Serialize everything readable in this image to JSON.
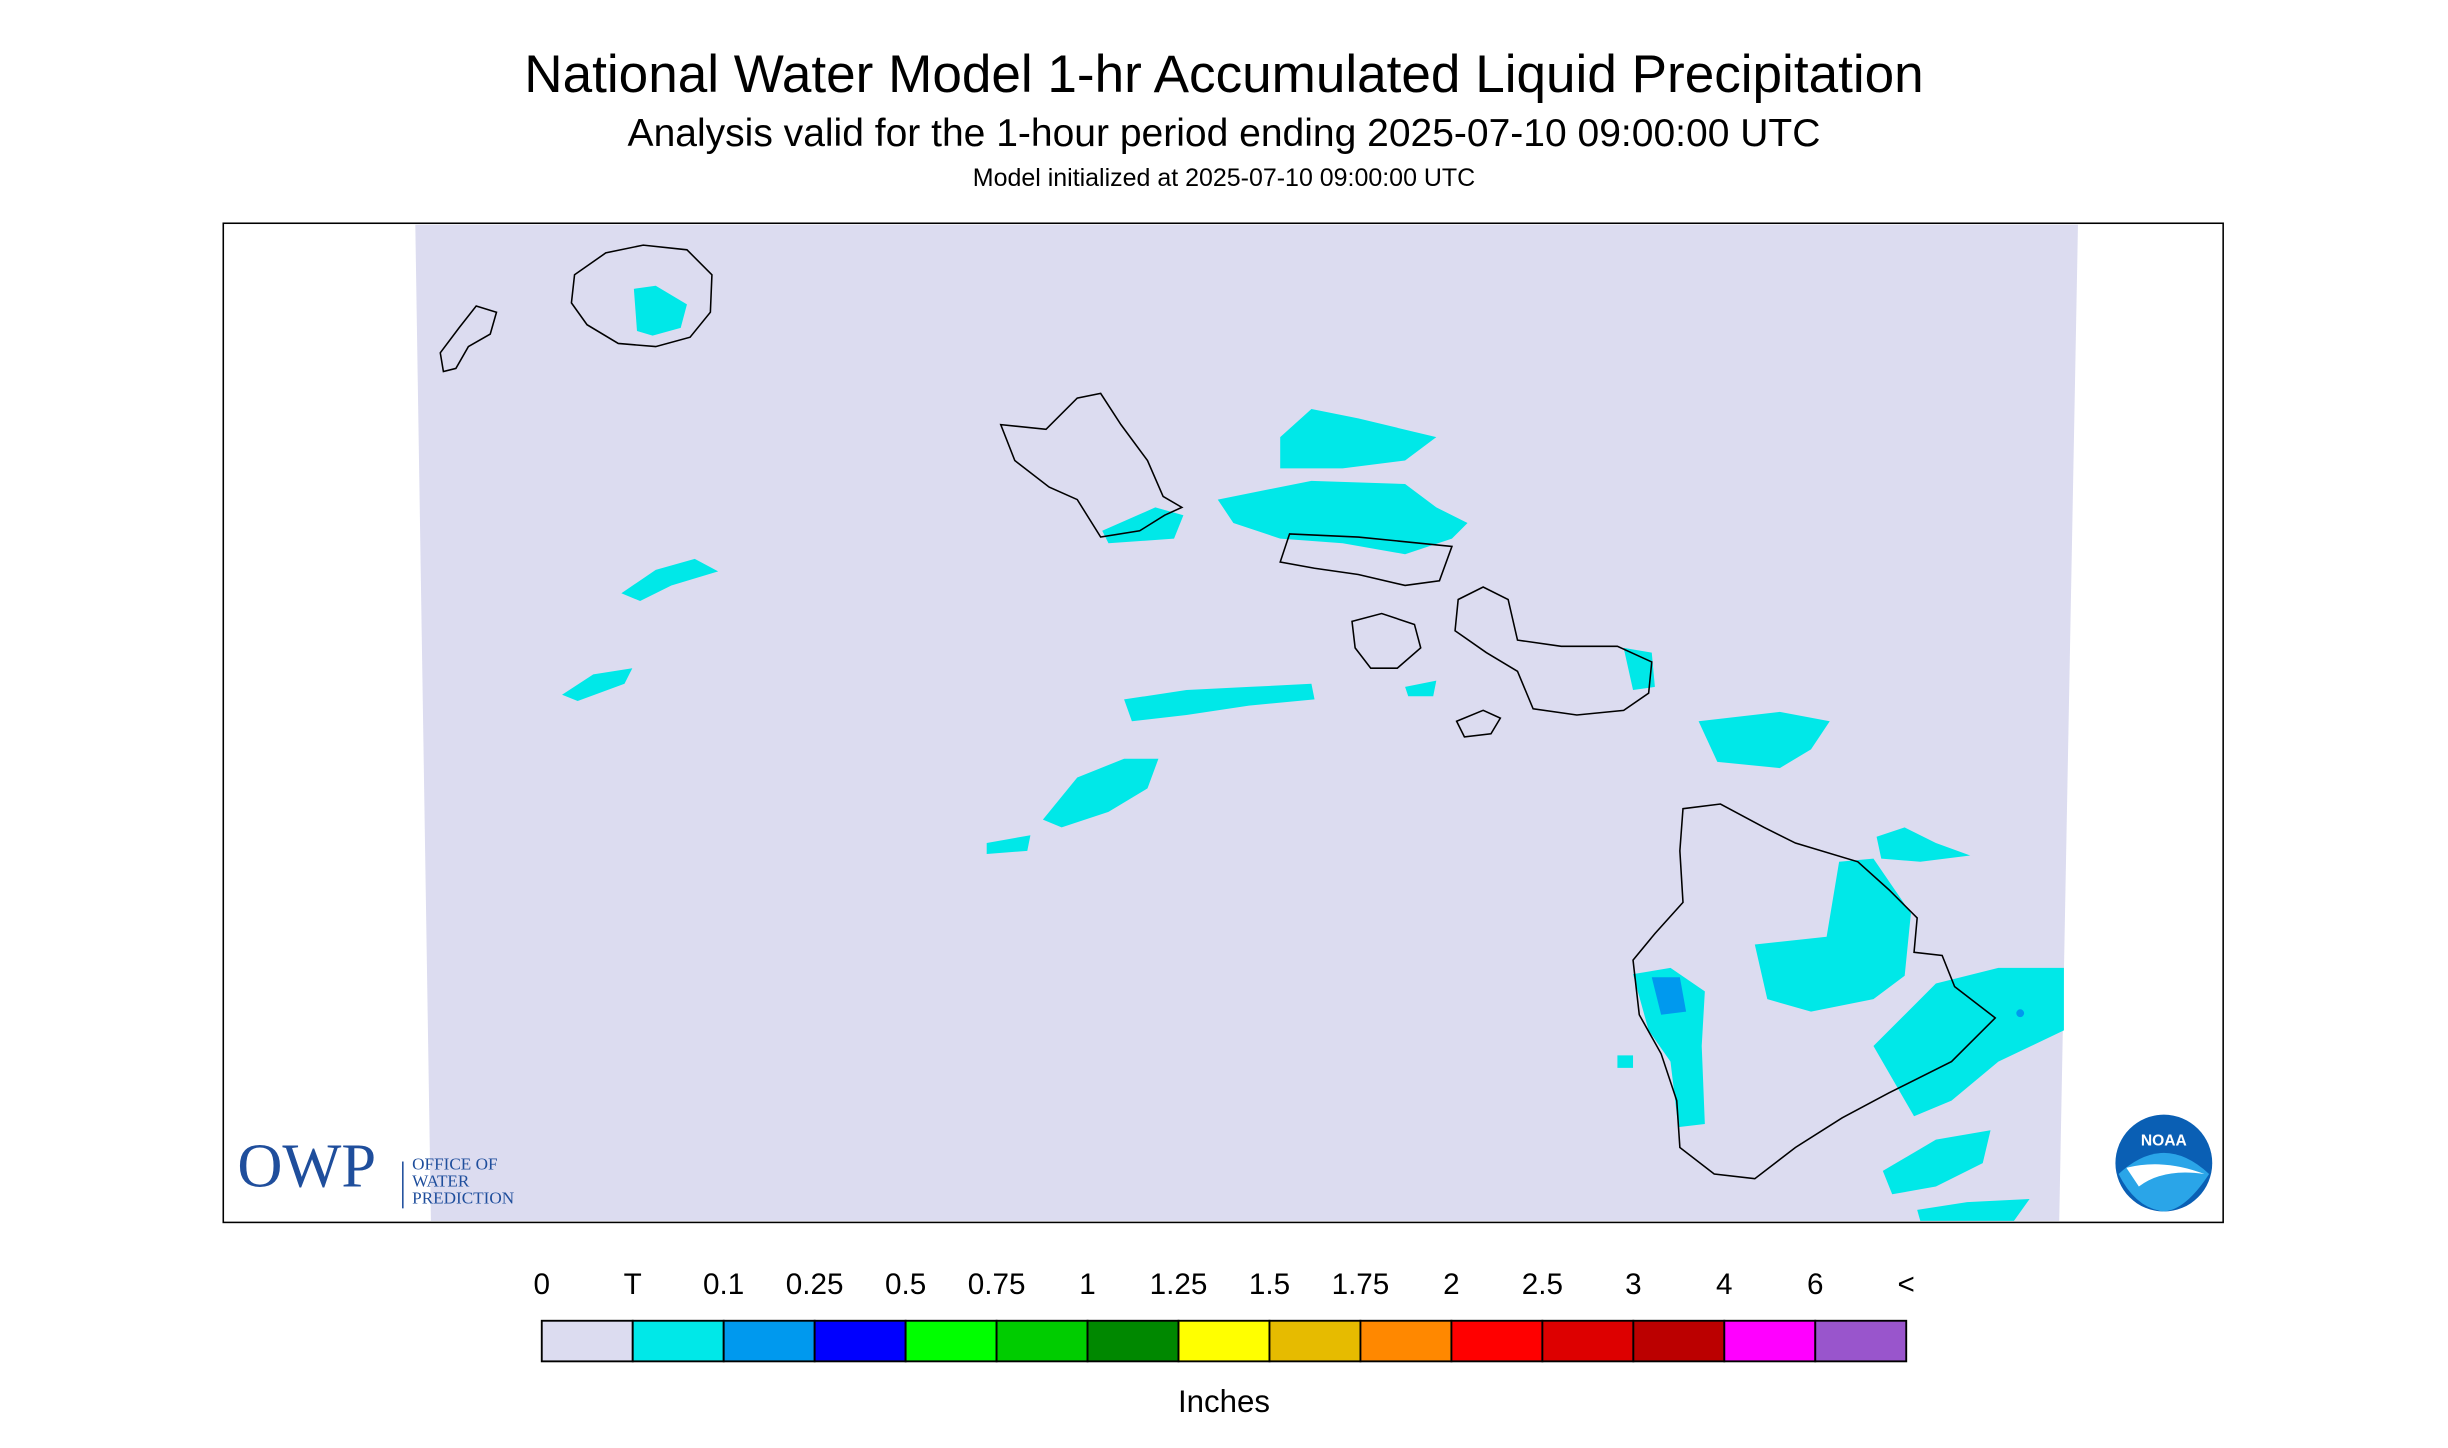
{
  "header": {
    "title": "National Water Model 1-hr Accumulated Liquid Precipitation",
    "subtitle": "Analysis valid for the 1-hour period ending 2025-07-10 09:00:00 UTC",
    "init": "Model initialized at 2025-07-10 09:00:00 UTC"
  },
  "logos": {
    "owp": "OWP",
    "owp_lines": [
      "OFFICE OF",
      "WATER",
      "PREDICTION"
    ],
    "noaa": "NOAA"
  },
  "legend": {
    "labels": [
      "0",
      "T",
      "0.1",
      "0.25",
      "0.5",
      "0.75",
      "1",
      "1.25",
      "1.5",
      "1.75",
      "2",
      "2.5",
      "3",
      "4",
      "6",
      "<"
    ],
    "colors": [
      "#dcdcf0",
      "#00e8e8",
      "#0099ee",
      "#0000ff",
      "#00ff00",
      "#00cc00",
      "#008800",
      "#ffff00",
      "#e6bb00",
      "#ff8800",
      "#ff0000",
      "#dd0000",
      "#bb0000",
      "#ff00ff",
      "#9955cc"
    ],
    "unit": "Inches"
  }
}
